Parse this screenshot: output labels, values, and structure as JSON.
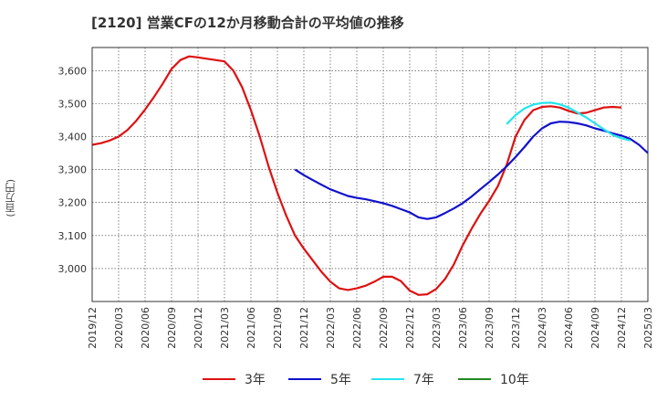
{
  "title": "[2120]  営業CFの12か月移動合計の平均値の推移",
  "y_unit": "(百万円)",
  "colors": {
    "s3": "#dd1111",
    "s5": "#1111cc",
    "s7": "#22e5ee",
    "s10": "#228822",
    "grid": "#333333",
    "frame": "#333333"
  },
  "chart_data": {
    "type": "line",
    "title": "[2120]  営業CFの12か月移動合計の平均値の推移",
    "ylabel": "(百万円)",
    "xlabel": "",
    "ylim": [
      2900,
      3670
    ],
    "yticks": [
      3000,
      3100,
      3200,
      3300,
      3400,
      3500,
      3600
    ],
    "ytick_labels": [
      "3,000",
      "3,100",
      "3,200",
      "3,300",
      "3,400",
      "3,500",
      "3,600"
    ],
    "xticks": [
      "2019/12",
      "2020/03",
      "2020/06",
      "2020/09",
      "2020/12",
      "2021/03",
      "2021/06",
      "2021/09",
      "2021/12",
      "2022/03",
      "2022/06",
      "2022/09",
      "2022/12",
      "2023/03",
      "2023/06",
      "2023/09",
      "2023/12",
      "2024/03",
      "2024/06",
      "2024/09",
      "2024/12",
      "2025/03"
    ],
    "grid": true,
    "legend_position": "bottom",
    "series": [
      {
        "name": "3年",
        "color": "#dd1111",
        "start": "2019/12",
        "values": [
          3375,
          3380,
          3388,
          3400,
          3420,
          3448,
          3482,
          3520,
          3560,
          3605,
          3632,
          3643,
          3640,
          3636,
          3632,
          3628,
          3600,
          3550,
          3480,
          3400,
          3310,
          3230,
          3160,
          3100,
          3060,
          3025,
          2990,
          2960,
          2940,
          2935,
          2940,
          2948,
          2960,
          2975,
          2975,
          2962,
          2933,
          2920,
          2922,
          2938,
          2968,
          3012,
          3070,
          3120,
          3165,
          3205,
          3250,
          3315,
          3400,
          3450,
          3480,
          3490,
          3492,
          3488,
          3478,
          3470,
          3472,
          3480,
          3488,
          3490,
          3488
        ]
      },
      {
        "name": "5年",
        "color": "#1111cc",
        "start": "2021/11",
        "values": [
          3300,
          3283,
          3268,
          3254,
          3240,
          3230,
          3220,
          3214,
          3210,
          3204,
          3198,
          3190,
          3180,
          3170,
          3155,
          3150,
          3155,
          3168,
          3182,
          3198,
          3218,
          3240,
          3262,
          3285,
          3310,
          3338,
          3368,
          3400,
          3425,
          3440,
          3445,
          3444,
          3440,
          3434,
          3425,
          3418,
          3410,
          3403,
          3393,
          3375,
          3350
        ]
      },
      {
        "name": "7年",
        "color": "#22e5ee",
        "start": "2023/11",
        "values": [
          3438,
          3465,
          3485,
          3497,
          3502,
          3503,
          3498,
          3488,
          3473,
          3458,
          3440,
          3422,
          3405,
          3395,
          3388
        ]
      },
      {
        "name": "10年",
        "color": "#228822",
        "start": "2025/01",
        "values": []
      }
    ]
  },
  "legend": [
    {
      "label": "3年",
      "color": "#dd1111"
    },
    {
      "label": "5年",
      "color": "#1111cc"
    },
    {
      "label": "7年",
      "color": "#22e5ee"
    },
    {
      "label": "10年",
      "color": "#228822"
    }
  ]
}
